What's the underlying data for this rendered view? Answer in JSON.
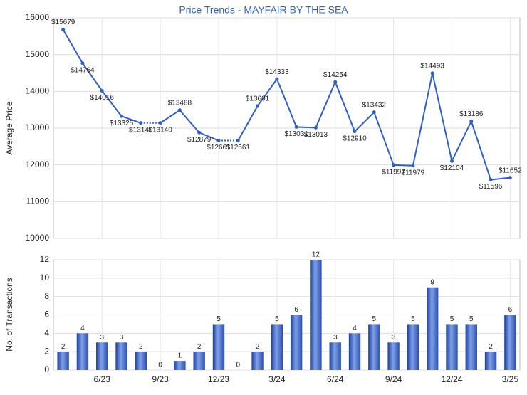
{
  "chart_data": [
    {
      "type": "line",
      "title": "Price Trends - MAYFAIR BY THE SEA",
      "ylabel": "Average Price",
      "categories": [
        null,
        null,
        "6/23",
        null,
        null,
        "9/23",
        null,
        null,
        "12/23",
        null,
        null,
        "3/24",
        null,
        null,
        "6/24",
        null,
        null,
        "9/24",
        null,
        null,
        "12/24",
        null,
        null,
        "3/25"
      ],
      "series": [
        {
          "name": "Average Price",
          "color": "#2f5fc4",
          "values": [
            15679,
            14764,
            14016,
            13325,
            13140,
            13140,
            13488,
            12879,
            12661,
            12661,
            13601,
            14333,
            13031,
            13013,
            14254,
            12910,
            13432,
            11997,
            11979,
            14493,
            12104,
            13186,
            11596,
            11652
          ],
          "value_labels": [
            "$15679",
            "$14764",
            "$14016",
            "$13325",
            "$13140",
            "$13140",
            "$13488",
            "$12879",
            "$12661",
            "$12661",
            "$13601",
            "$14333",
            "$13031",
            "$13013",
            "$14254",
            "$12910",
            "$13432",
            "$11997",
            "$11979",
            "$14493",
            "$12104",
            "$13186",
            "$11596",
            "$11652"
          ]
        }
      ],
      "ylim": [
        10000,
        16000
      ],
      "yticks": [
        10000,
        11000,
        12000,
        13000,
        14000,
        15000,
        16000
      ],
      "grid": true
    },
    {
      "type": "bar",
      "ylabel": "No. of Transactions",
      "categories": [
        null,
        null,
        "6/23",
        null,
        null,
        "9/23",
        null,
        null,
        "12/23",
        null,
        null,
        "3/24",
        null,
        null,
        "6/24",
        null,
        null,
        "9/24",
        null,
        null,
        "12/24",
        null,
        null,
        "3/25"
      ],
      "series": [
        {
          "name": "No. of Transactions",
          "color": "#3a66c8",
          "values": [
            2,
            4,
            3,
            3,
            2,
            0,
            1,
            2,
            5,
            0,
            2,
            5,
            6,
            12,
            3,
            4,
            5,
            3,
            5,
            9,
            5,
            5,
            2,
            6
          ]
        }
      ],
      "ylim": [
        0,
        12
      ],
      "yticks": [
        0,
        2,
        4,
        6,
        8,
        10,
        12
      ],
      "grid": true
    }
  ]
}
